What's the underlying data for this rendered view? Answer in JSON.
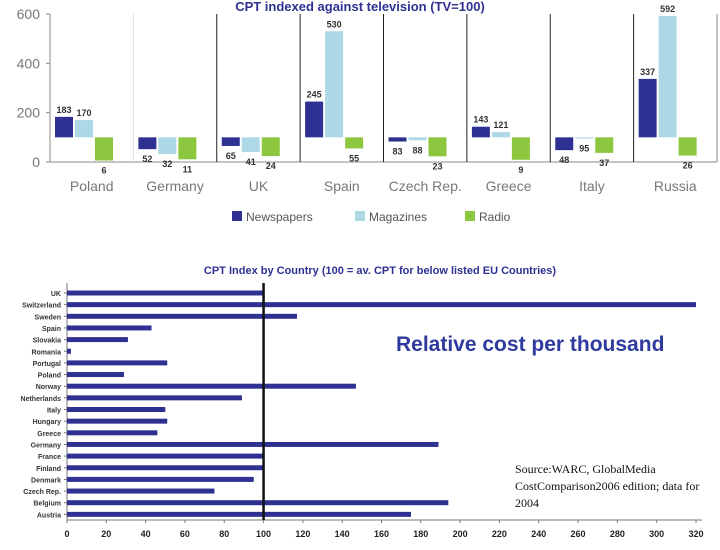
{
  "chart_data": [
    {
      "type": "bar",
      "title": "CPT indexed against television (TV=100)",
      "categories": [
        "Poland",
        "Germany",
        "UK",
        "Spain",
        "Czech Rep.",
        "Greece",
        "Italy",
        "Russia"
      ],
      "series": [
        {
          "name": "Newspapers",
          "color": "#2e3192",
          "values": [
            183,
            52,
            65,
            245,
            83,
            143,
            48,
            337
          ]
        },
        {
          "name": "Magazines",
          "color": "#add8e6",
          "values": [
            170,
            32,
            41,
            530,
            88,
            121,
            95,
            592
          ]
        },
        {
          "name": "Radio",
          "color": "#8dc63f",
          "values": [
            6,
            11,
            24,
            55,
            23,
            9,
            37,
            26
          ]
        }
      ],
      "value_labels": {
        "Newspapers": [
          "183",
          "52",
          "65",
          "245",
          "83",
          "143",
          "48",
          "337"
        ],
        "Magazines": [
          "170",
          "32",
          "41",
          "530",
          "88",
          "121",
          "95",
          "592"
        ],
        "Radio": [
          "6",
          "11",
          "24",
          "55",
          "23",
          "9",
          "37",
          "26"
        ]
      },
      "ylim": [
        0,
        600
      ],
      "yticks": [
        0,
        200,
        400,
        600
      ],
      "note": "Bars are drawn relative to the TV=100 baseline: newspaper and magazine bars rise above 100, radio bars hang below it.",
      "grid": false,
      "legend": "bottom"
    },
    {
      "type": "bar",
      "orientation": "horizontal",
      "title": "CPT Index by Country (100 = av. CPT for below listed EU Countries)",
      "categories": [
        "UK",
        "Switzerland",
        "Sweden",
        "Spain",
        "Slovakia",
        "Romania",
        "Portugal",
        "Poland",
        "Norway",
        "Netherlands",
        "Italy",
        "Hungary",
        "Greece",
        "Germany",
        "France",
        "Finland",
        "Denmark",
        "Czech Rep.",
        "Belgium",
        "Austria"
      ],
      "values": [
        100,
        320,
        117,
        43,
        31,
        2,
        51,
        29,
        147,
        89,
        50,
        51,
        46,
        189,
        100,
        100,
        95,
        75,
        194,
        175
      ],
      "color": "#2e3192",
      "xlim": [
        0,
        320
      ],
      "xticks": [
        0,
        20,
        40,
        60,
        80,
        100,
        120,
        140,
        160,
        180,
        200,
        220,
        240,
        260,
        280,
        300,
        320
      ],
      "reference_line": 100,
      "grid": false
    }
  ],
  "annotation": {
    "caption": "Relative cost per thousand",
    "source": "Source:WARC, GlobalMedia CostComparison2006 edition; data for 2004"
  }
}
